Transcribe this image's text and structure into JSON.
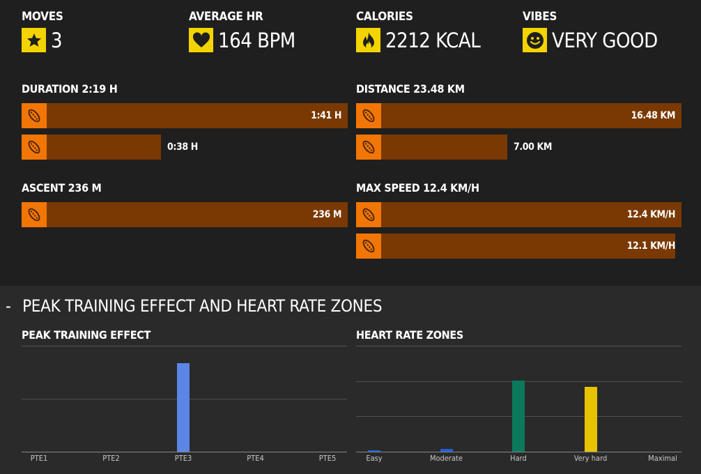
{
  "stats": [
    {
      "label": "MOVES",
      "value": "3",
      "icon": "star-icon"
    },
    {
      "label": "AVERAGE HR",
      "value": "164 BPM",
      "icon": "heart-icon"
    },
    {
      "label": "CALORIES",
      "value": "2212 KCAL",
      "icon": "flame-icon"
    },
    {
      "label": "VIBES",
      "value": "VERY GOOD",
      "icon": "smiley-icon"
    }
  ],
  "duration": {
    "label": "DURATION 2:19 H",
    "bars": [
      {
        "value": "1:41 H",
        "fraction": 1.0
      },
      {
        "value": "0:38 H",
        "fraction": 0.376
      }
    ]
  },
  "distance": {
    "label": "DISTANCE 23.48 KM",
    "bars": [
      {
        "value": "16.48 KM",
        "fraction": 1.0
      },
      {
        "value": "7.00 KM",
        "fraction": 0.425
      }
    ]
  },
  "ascent": {
    "label": "ASCENT 236 M",
    "bars": [
      {
        "value": "236 M",
        "fraction": 1.0
      }
    ]
  },
  "max_speed": {
    "label": "MAX SPEED 12.4 KM/H",
    "bars": [
      {
        "value": "12.4 KM/H",
        "fraction": 1.0
      },
      {
        "value": "12.1 KM/H",
        "fraction": 0.976
      }
    ]
  },
  "section": {
    "toggle": "-",
    "title": "PEAK TRAINING EFFECT AND HEART RATE ZONES"
  },
  "colors": {
    "accent_yellow": "#f3d400",
    "bar_fill": "#7a3902",
    "shoe_orange": "#f27606",
    "pte_bar": "#5b86e5",
    "zone_moderate": "#1e5fd6",
    "zone_hard": "#0b7a5c",
    "zone_very_hard": "#e7c200"
  },
  "chart_data": [
    {
      "type": "bar",
      "title": "PEAK TRAINING EFFECT",
      "categories": [
        "PTE1",
        "PTE2",
        "PTE3",
        "PTE4",
        "PTE5"
      ],
      "values": [
        0,
        0,
        1,
        0,
        0
      ],
      "ylim": [
        0,
        1.2
      ],
      "grid": true
    },
    {
      "type": "bar",
      "title": "HEART RATE ZONES",
      "categories": [
        "Easy",
        "Moderate",
        "Hard",
        "Very hard",
        "Maximal"
      ],
      "values": [
        0.01,
        0.04,
        1.0,
        0.91,
        0
      ],
      "ylim": [
        0,
        1.2
      ],
      "grid": true,
      "colors": [
        "#1e5fd6",
        "#1e5fd6",
        "#0b7a5c",
        "#e7c200",
        "#888888"
      ]
    }
  ]
}
